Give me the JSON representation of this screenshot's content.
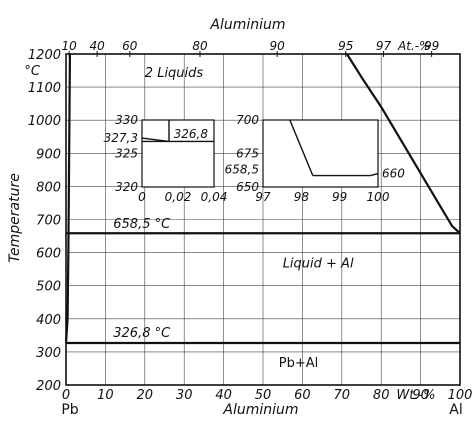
{
  "chart_data": {
    "type": "line",
    "title": "",
    "xlabel": "Aluminium",
    "x_unit_label": "Wt.-%",
    "top_axis": {
      "label": "Aluminium",
      "unit_label": "At.-%",
      "ticks": [
        10,
        40,
        60,
        80,
        90,
        95,
        97,
        99
      ],
      "ticks_wt": [
        0.8,
        7.9,
        16.2,
        34.0,
        53.6,
        71.0,
        80.6,
        92.8
      ]
    },
    "ylabel": "Temperature",
    "y_unit_label": "°C",
    "xlim": [
      0,
      100
    ],
    "ylim": [
      200,
      1200
    ],
    "x_ticks": [
      0,
      10,
      20,
      30,
      40,
      50,
      60,
      70,
      80,
      90,
      100
    ],
    "y_ticks": [
      200,
      300,
      400,
      500,
      600,
      700,
      800,
      900,
      1000,
      1100,
      1200
    ],
    "x_end_labels": {
      "left": "Pb",
      "right": "Al"
    },
    "grid": true,
    "series": [
      {
        "name": "",
        "x": [
          71.3,
          75,
          80,
          85,
          90,
          95,
          98,
          100
        ],
        "y": [
          1200,
          1130,
          1040,
          940,
          840,
          740,
          680,
          658.5
        ]
      },
      {
        "name": "",
        "x": [
          0,
          0.4,
          0.6,
          1
        ],
        "y": [
          326.8,
          400,
          600,
          1200
        ]
      }
    ],
    "isotherms": [
      {
        "y": 658.5,
        "x": [
          0,
          100
        ]
      },
      {
        "y": 326.8,
        "x": [
          0,
          100
        ]
      }
    ],
    "annotations": [
      {
        "text": "2 Liquids",
        "x": 20,
        "y": 1130
      },
      {
        "text": "658,5 °C",
        "x": 12,
        "y": 675
      },
      {
        "text": "Liquid + Al",
        "x": 55,
        "y": 555
      },
      {
        "text": "326,8 °C",
        "x": 12,
        "y": 345
      },
      {
        "text": "Pb+Al",
        "x": 54,
        "y": 255
      }
    ],
    "insets": [
      {
        "name": "inset-left",
        "xlim": [
          0,
          0.04
        ],
        "ylim": [
          320,
          330
        ],
        "x_ticks": [
          0,
          0.02,
          0.04
        ],
        "x_tick_labels": [
          "0",
          "0,02",
          "0,04"
        ],
        "y_ticks": [
          320,
          325,
          330
        ],
        "y_tick_labels": [
          "320",
          "325",
          "330"
        ],
        "series": [
          {
            "x": [
              0,
              0.015
            ],
            "y": [
              327.3,
              326.8
            ]
          }
        ],
        "isotherm_y": 326.8,
        "vline": {
          "x": 0.015,
          "y": [
            326.8,
            330
          ]
        },
        "labels": [
          {
            "text": "327,3",
            "x": 0,
            "y": 327.3,
            "side": "left"
          },
          {
            "text": "326,8",
            "x": 0.017,
            "y": 327.9,
            "side": "right"
          }
        ]
      },
      {
        "name": "inset-right",
        "xlim": [
          97,
          100
        ],
        "ylim": [
          650,
          700
        ],
        "x_ticks": [
          97,
          98,
          99,
          100
        ],
        "x_tick_labels": [
          "97",
          "98",
          "99",
          "100"
        ],
        "y_ticks": [
          650,
          675,
          700
        ],
        "y_tick_labels": [
          "650",
          "675",
          "700"
        ],
        "series": [
          {
            "x": [
              97.7,
              98.3
            ],
            "y": [
              700,
              658.5
            ]
          }
        ],
        "isotherm": {
          "y": 658.5,
          "x": [
            98.3,
            99.8
          ]
        },
        "rise": {
          "x": [
            99.8,
            100
          ],
          "y": [
            658.5,
            660
          ]
        },
        "labels": [
          {
            "text": "658,5",
            "x": 97,
            "y": 663,
            "side": "left"
          },
          {
            "text": "660",
            "x": 100,
            "y": 660,
            "side": "right"
          }
        ]
      }
    ]
  }
}
